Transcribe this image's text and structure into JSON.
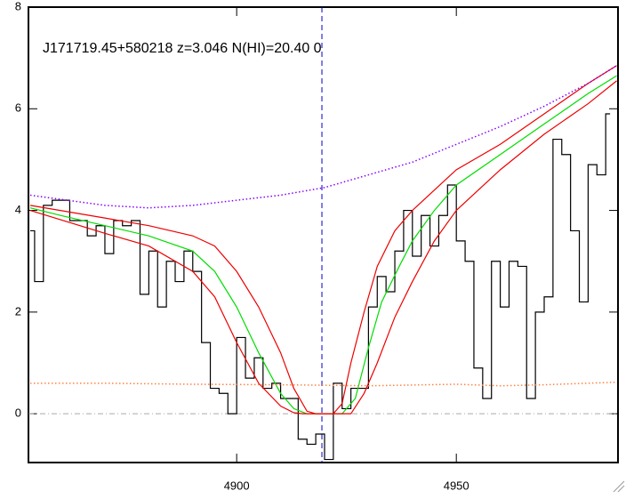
{
  "chart_data": {
    "type": "line",
    "title": "J171719.45+580218 z=3.046 N(HI)=20.40 0",
    "xlim": [
      4852.6,
      4986.8
    ],
    "ylim": [
      -0.96,
      8
    ],
    "xticks": [
      4900,
      4950
    ],
    "yticks": [
      0,
      2,
      4,
      6,
      8
    ],
    "vline": {
      "x": 4919.4,
      "color": "#0000cc"
    },
    "hline": {
      "y": 0,
      "color": "#aaaaaa"
    },
    "series": [
      {
        "color": "#000000",
        "style": "step",
        "x": [
          4853,
          4855,
          4857,
          4859,
          4861,
          4863,
          4865,
          4867,
          4869,
          4871,
          4873,
          4875,
          4877,
          4879,
          4881,
          4883,
          4885,
          4887,
          4889,
          4891,
          4893,
          4895,
          4897,
          4899,
          4901,
          4903,
          4905,
          4907,
          4909,
          4911,
          4913,
          4915,
          4917,
          4919,
          4921,
          4923,
          4925,
          4927,
          4929,
          4931,
          4933,
          4935,
          4937,
          4939,
          4941,
          4943,
          4945,
          4947,
          4949,
          4951,
          4953,
          4955,
          4957,
          4959,
          4961,
          4963,
          4965,
          4967,
          4969,
          4971,
          4973,
          4975,
          4977,
          4979,
          4981,
          4983,
          4985
        ],
        "values": [
          3.6,
          2.6,
          4.1,
          4.2,
          4.2,
          3.8,
          3.8,
          3.5,
          3.7,
          3.15,
          3.8,
          3.7,
          3.8,
          2.35,
          3.2,
          2.1,
          3.0,
          2.6,
          3.2,
          2.8,
          1.4,
          0.5,
          0.4,
          0.0,
          1.5,
          0.7,
          1.1,
          0.5,
          0.6,
          0.3,
          0.3,
          -0.5,
          -0.6,
          -0.4,
          -0.9,
          0.6,
          0.1,
          0.5,
          0.5,
          2.1,
          2.7,
          2.4,
          3.2,
          4.0,
          3.1,
          3.9,
          3.3,
          3.9,
          4.5,
          3.4,
          3.0,
          0.9,
          0.3,
          3.0,
          2.1,
          3.0,
          2.9,
          0.3,
          2.0,
          2.3,
          5.4,
          5.1,
          3.6,
          2.2,
          4.9,
          4.7,
          5.9
        ]
      },
      {
        "color": "#00dd00",
        "style": "solid",
        "x": [
          4853,
          4860,
          4870,
          4880,
          4890,
          4895,
          4900,
          4905,
          4910,
          4913,
          4916,
          4924,
          4927,
          4930,
          4933,
          4937,
          4940,
          4945,
          4950,
          4960,
          4970,
          4980,
          4986.5
        ],
        "values": [
          4.05,
          3.9,
          3.7,
          3.5,
          3.2,
          2.8,
          2.1,
          1.2,
          0.4,
          0.1,
          0.0,
          0.0,
          0.3,
          1.3,
          2.2,
          2.9,
          3.4,
          4.0,
          4.5,
          5.1,
          5.7,
          6.3,
          6.65
        ]
      },
      {
        "color": "#ee0000",
        "style": "solid",
        "x": [
          4853,
          4870,
          4880,
          4890,
          4895,
          4900,
          4905,
          4910,
          4913,
          4916,
          4918,
          4922,
          4924,
          4926,
          4929,
          4932,
          4936,
          4940,
          4950,
          4960,
          4970,
          4980,
          4986.5
        ],
        "values": [
          4.1,
          3.85,
          3.7,
          3.5,
          3.3,
          2.8,
          2.1,
          1.2,
          0.5,
          0.05,
          0,
          0,
          0.2,
          1.0,
          2.0,
          2.9,
          3.6,
          4.0,
          4.8,
          5.3,
          5.9,
          6.5,
          6.85
        ]
      },
      {
        "color": "#ee0000",
        "style": "solid",
        "x": [
          4853,
          4870,
          4880,
          4890,
          4895,
          4900,
          4905,
          4910,
          4913,
          4915,
          4926,
          4929,
          4932,
          4936,
          4940,
          4945,
          4950,
          4960,
          4970,
          4980,
          4986.5
        ],
        "values": [
          4.0,
          3.55,
          3.3,
          2.8,
          2.3,
          1.4,
          0.6,
          0.15,
          0.02,
          0,
          0,
          0.4,
          1.0,
          1.9,
          2.6,
          3.4,
          4.0,
          4.8,
          5.5,
          6.1,
          6.55
        ]
      },
      {
        "color": "#8800ff",
        "style": "dotted",
        "x": [
          4853,
          4870,
          4880,
          4890,
          4900,
          4910,
          4920,
          4930,
          4940,
          4950,
          4960,
          4970,
          4980,
          4986.5
        ],
        "values": [
          4.3,
          4.1,
          4.05,
          4.1,
          4.2,
          4.3,
          4.45,
          4.7,
          4.95,
          5.3,
          5.65,
          6.05,
          6.5,
          6.85
        ]
      },
      {
        "color": "#ff8040",
        "style": "dotted",
        "x": [
          4853,
          4870,
          4890,
          4910,
          4930,
          4950,
          4960,
          4970,
          4986.5
        ],
        "values": [
          0.6,
          0.6,
          0.58,
          0.57,
          0.55,
          0.58,
          0.55,
          0.57,
          0.62
        ]
      }
    ]
  }
}
